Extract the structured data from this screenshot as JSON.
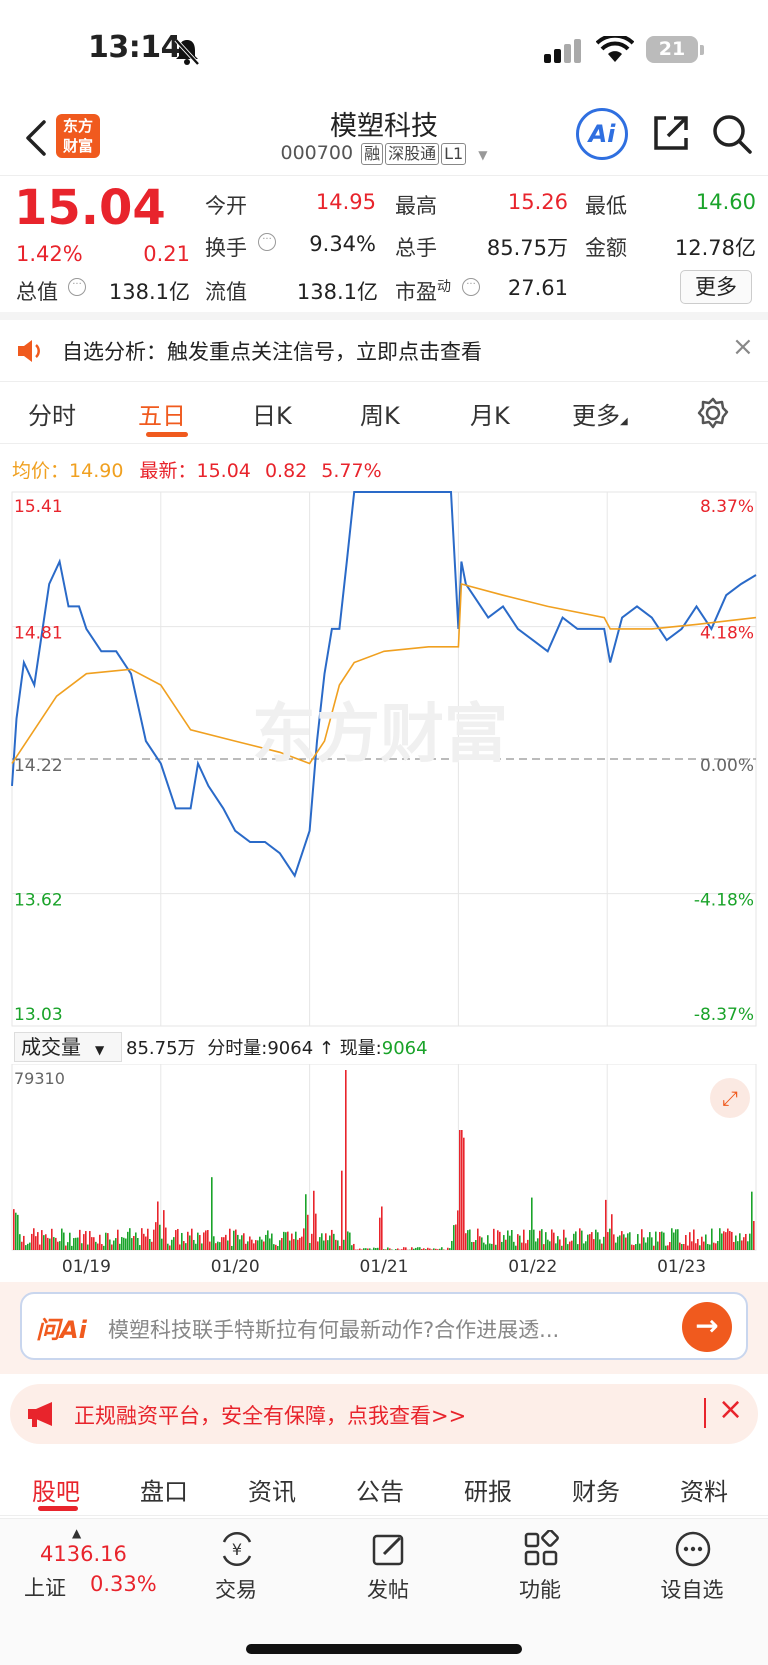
{
  "status_bar": {
    "time": "13:14",
    "battery": "21"
  },
  "nav": {
    "logo_line1": "东方",
    "logo_line2": "财富",
    "title": "模塑科技",
    "code": "000700",
    "tags": [
      "融",
      "深股通",
      "L1"
    ]
  },
  "quote": {
    "price": "15.04",
    "change_pct": "1.42%",
    "change": "0.21",
    "open_label": "今开",
    "open": "14.95",
    "high_label": "最高",
    "high": "15.26",
    "low_label": "最低",
    "low": "14.60",
    "turnover_label": "换手",
    "turnover": "9.34%",
    "volume_label": "总手",
    "volume": "85.75万",
    "amount_label": "金额",
    "amount": "12.78亿",
    "mktcap_label": "总值",
    "mktcap": "138.1亿",
    "float_label": "流值",
    "float_cap": "138.1亿",
    "pe_label": "市盈",
    "pe_sup": "动",
    "pe": "27.61",
    "more_button": "更多"
  },
  "notice": {
    "text": "自选分析：触发重点关注信号，立即点击查看"
  },
  "chart_tabs": [
    "分时",
    "五日",
    "日K",
    "周K",
    "月K",
    "更多"
  ],
  "chart_legend": {
    "avg_label": "均价：",
    "avg": "14.90",
    "latest_label": "最新：",
    "latest": "15.04",
    "change": "0.82",
    "change_pct": "5.77%"
  },
  "volume_header": {
    "selector": "成交量",
    "total": "85.75万",
    "tick_label": "分时量:",
    "tick_value": "9064",
    "cur_label": "现量:",
    "cur_value": "9064"
  },
  "ai_bar": {
    "brand": "问Ai",
    "text": "模塑科技联手特斯拉有何最新动作?合作进展透..."
  },
  "ad_bar": {
    "text": "正规融资平台，安全有保障，点我查看>>"
  },
  "bottom_tabs": [
    "股吧",
    "盘口",
    "资讯",
    "公告",
    "研报",
    "财务",
    "资料"
  ],
  "bottom_nav": {
    "index_value": "4136.16",
    "index_name": "上证",
    "index_change": "0.33%",
    "items": [
      "交易",
      "发帖",
      "功能",
      "设自选"
    ]
  },
  "chart_data": {
    "type": "line",
    "x_ticks": [
      "01/19",
      "01/20",
      "01/21",
      "01/22",
      "01/23"
    ],
    "y_left_ticks": [
      "15.41",
      "14.81",
      "14.22",
      "13.62",
      "13.03"
    ],
    "y_right_ticks": [
      "8.37%",
      "4.18%",
      "0.00%",
      "-4.18%",
      "-8.37%"
    ],
    "ylim": [
      13.03,
      15.41
    ],
    "prev_close": 14.22,
    "series": [
      {
        "x": [
          0,
          0.03,
          0.08,
          0.15,
          0.25,
          0.32,
          0.38,
          0.45,
          0.5,
          0.6,
          0.7,
          0.8,
          0.9,
          1.0,
          1.1,
          1.2,
          1.25,
          1.32,
          1.42,
          1.5,
          1.6,
          1.7,
          1.8,
          1.9,
          2.0,
          2.05,
          2.1,
          2.15,
          2.2,
          2.25,
          2.3,
          2.35,
          2.4,
          2.45,
          2.5,
          2.6,
          2.8,
          2.95,
          3.0,
          3.02,
          3.05,
          3.1,
          3.2,
          3.3,
          3.4,
          3.5,
          3.6,
          3.7,
          3.8,
          3.9,
          3.98,
          4.02,
          4.1,
          4.2,
          4.3,
          4.4,
          4.5,
          4.6,
          4.7,
          4.8,
          4.9,
          5.0
        ],
        "values": [
          14.1,
          14.4,
          14.65,
          14.55,
          15.0,
          15.1,
          14.9,
          14.9,
          14.8,
          14.7,
          14.7,
          14.6,
          14.3,
          14.2,
          14.0,
          14.0,
          14.2,
          14.1,
          14.0,
          13.9,
          13.85,
          13.85,
          13.8,
          13.7,
          13.9,
          14.3,
          14.6,
          14.8,
          14.8,
          15.1,
          15.41,
          15.41,
          15.41,
          15.41,
          15.41,
          15.41,
          15.41,
          15.41,
          14.8,
          15.1,
          15.0,
          14.95,
          14.85,
          14.9,
          14.8,
          14.75,
          14.7,
          14.85,
          14.8,
          14.8,
          14.8,
          14.65,
          14.85,
          14.9,
          14.85,
          14.75,
          14.8,
          14.9,
          14.8,
          14.95,
          15.0,
          15.04
        ]
      },
      {
        "x": [
          0,
          0.3,
          0.5,
          0.8,
          1.0,
          1.2,
          1.5,
          1.8,
          2.0,
          2.1,
          2.2,
          2.3,
          2.5,
          2.8,
          3.0,
          3.02,
          3.3,
          3.6,
          3.98,
          4.02,
          4.3,
          4.6,
          5.0
        ],
        "values": [
          14.2,
          14.5,
          14.6,
          14.62,
          14.55,
          14.35,
          14.3,
          14.25,
          14.2,
          14.3,
          14.55,
          14.65,
          14.7,
          14.72,
          14.72,
          15.0,
          14.95,
          14.9,
          14.85,
          14.8,
          14.8,
          14.82,
          14.85
        ]
      }
    ],
    "volume_max": "79310"
  }
}
